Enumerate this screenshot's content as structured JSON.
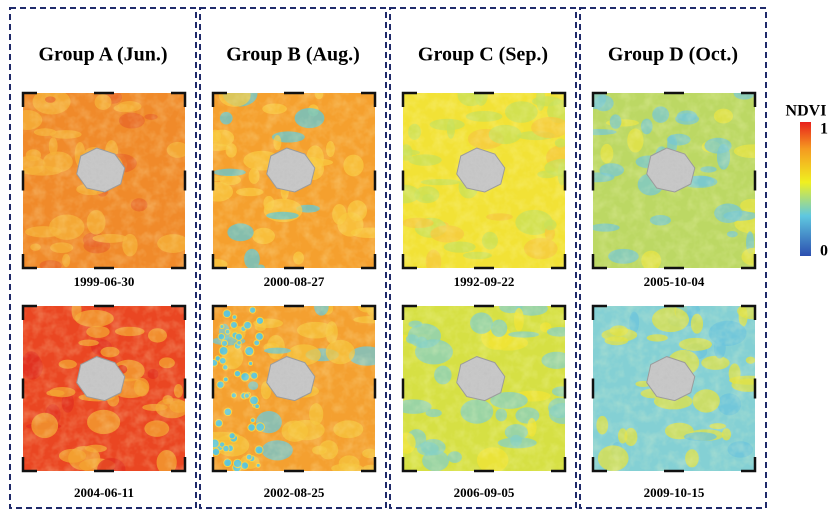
{
  "groups": [
    {
      "title": "Group A (Jun.)",
      "dates": [
        "1999-06-30",
        "2004-06-11"
      ]
    },
    {
      "title": "Group B (Aug.)",
      "dates": [
        "2000-08-27",
        "2002-08-25"
      ]
    },
    {
      "title": "Group C (Sep.)",
      "dates": [
        "1992-09-22",
        "2006-09-05"
      ]
    },
    {
      "title": "Group D (Oct.)",
      "dates": [
        "2005-10-04",
        "2009-10-15"
      ]
    }
  ],
  "colorbar": {
    "title": "NDVI",
    "max_label": "1",
    "min_label": "0"
  }
}
